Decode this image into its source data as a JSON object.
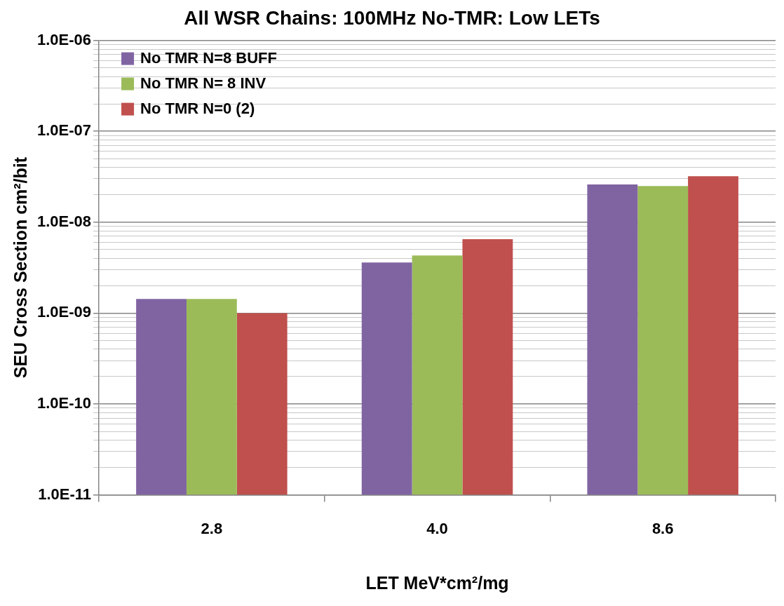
{
  "chart_data": {
    "type": "bar",
    "title": "All WSR Chains: 100MHz No-TMR: Low LETs",
    "xlabel": "LET MeV*cm²/mg",
    "ylabel": "SEU Cross Section cm²/bit",
    "categories": [
      "2.8",
      "4.0",
      "8.6"
    ],
    "series": [
      {
        "name": "No TMR N=8 BUFF",
        "color": "#8064a2",
        "values": [
          1.43e-09,
          3.6e-09,
          2.6e-08
        ]
      },
      {
        "name": "No TMR N= 8 INV",
        "color": "#9bbb59",
        "values": [
          1.43e-09,
          4.3e-09,
          2.5e-08
        ]
      },
      {
        "name": "No TMR N=0 (2)",
        "color": "#c0504d",
        "values": [
          1e-09,
          6.5e-09,
          3.2e-08
        ]
      }
    ],
    "log": "y",
    "ylim": [
      1e-11,
      1e-06
    ],
    "yticks": [
      {
        "value": 1e-11,
        "label": "1.0E-11"
      },
      {
        "value": 2e-11,
        "label": null
      },
      {
        "value": 3e-11,
        "label": null
      },
      {
        "value": 4e-11,
        "label": null
      },
      {
        "value": 5e-11,
        "label": null
      },
      {
        "value": 6e-11,
        "label": null
      },
      {
        "value": 7e-11,
        "label": null
      },
      {
        "value": 8e-11,
        "label": null
      },
      {
        "value": 9e-11,
        "label": null
      },
      {
        "value": 1e-10,
        "label": "1.0E-10"
      },
      {
        "value": 2e-10,
        "label": null
      },
      {
        "value": 3e-10,
        "label": null
      },
      {
        "value": 4e-10,
        "label": null
      },
      {
        "value": 5e-10,
        "label": null
      },
      {
        "value": 6e-10,
        "label": null
      },
      {
        "value": 7e-10,
        "label": null
      },
      {
        "value": 8e-10,
        "label": null
      },
      {
        "value": 9e-10,
        "label": null
      },
      {
        "value": 1e-09,
        "label": "1.0E-09"
      },
      {
        "value": 2e-09,
        "label": null
      },
      {
        "value": 3e-09,
        "label": null
      },
      {
        "value": 4e-09,
        "label": null
      },
      {
        "value": 5e-09,
        "label": null
      },
      {
        "value": 6e-09,
        "label": null
      },
      {
        "value": 7e-09,
        "label": null
      },
      {
        "value": 8e-09,
        "label": null
      },
      {
        "value": 9e-09,
        "label": null
      },
      {
        "value": 1e-08,
        "label": "1.0E-08"
      },
      {
        "value": 2e-08,
        "label": null
      },
      {
        "value": 3e-08,
        "label": null
      },
      {
        "value": 4e-08,
        "label": null
      },
      {
        "value": 5e-08,
        "label": null
      },
      {
        "value": 6e-08,
        "label": null
      },
      {
        "value": 7e-08,
        "label": null
      },
      {
        "value": 8e-08,
        "label": null
      },
      {
        "value": 9e-08,
        "label": null
      },
      {
        "value": 1e-07,
        "label": "1.0E-07"
      },
      {
        "value": 2e-07,
        "label": null
      },
      {
        "value": 3e-07,
        "label": null
      },
      {
        "value": 4e-07,
        "label": null
      },
      {
        "value": 5e-07,
        "label": null
      },
      {
        "value": 6e-07,
        "label": null
      },
      {
        "value": 7e-07,
        "label": null
      },
      {
        "value": 8e-07,
        "label": null
      },
      {
        "value": 9e-07,
        "label": null
      },
      {
        "value": 1e-06,
        "label": "1.0E-06"
      }
    ],
    "grid": "y",
    "legend": "top left"
  }
}
